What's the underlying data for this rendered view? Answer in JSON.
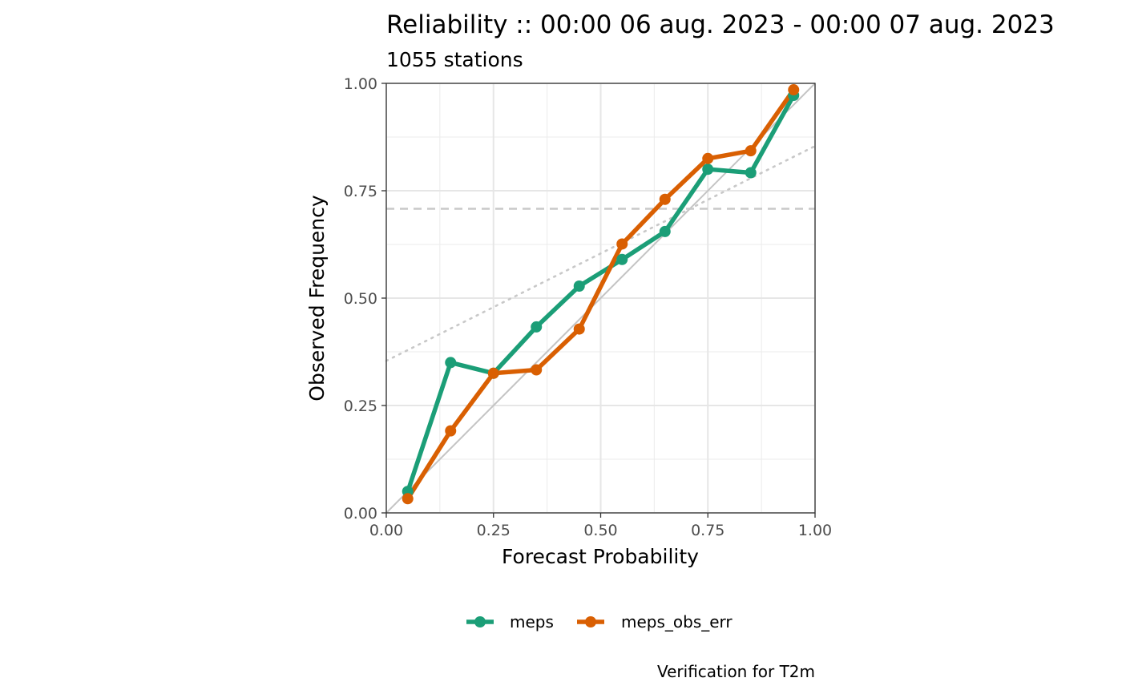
{
  "chart_data": {
    "type": "line",
    "title": "Reliability :: 00:00 06 aug. 2023 - 00:00 07 aug. 2023",
    "subtitle": "1055 stations",
    "xlabel": "Forecast Probability",
    "ylabel": "Observed Frequency",
    "caption": "Verification for T2m",
    "xlim": [
      0,
      1
    ],
    "ylim": [
      0,
      1
    ],
    "x_ticks": [
      "0.00",
      "0.25",
      "0.50",
      "0.75",
      "1.00"
    ],
    "y_ticks": [
      "0.00",
      "0.25",
      "0.50",
      "0.75",
      "1.00"
    ],
    "grid": true,
    "legend_position": "bottom",
    "reference_lines": {
      "perfect_reliability": {
        "from": [
          0,
          0
        ],
        "to": [
          1,
          1
        ]
      },
      "climatology": 0.708,
      "no_skill": {
        "intercept": 0.354,
        "slope": 0.5
      }
    },
    "series": [
      {
        "name": "meps",
        "color": "#1b9e77",
        "x": [
          0.05,
          0.15,
          0.25,
          0.35,
          0.45,
          0.55,
          0.65,
          0.75,
          0.85,
          0.95
        ],
        "y": [
          0.05,
          0.35,
          0.325,
          0.433,
          0.528,
          0.59,
          0.655,
          0.8,
          0.792,
          0.972
        ]
      },
      {
        "name": "meps_obs_err",
        "color": "#d95f02",
        "x": [
          0.05,
          0.15,
          0.25,
          0.35,
          0.45,
          0.55,
          0.65,
          0.75,
          0.85,
          0.95
        ],
        "y": [
          0.033,
          0.191,
          0.325,
          0.333,
          0.428,
          0.626,
          0.73,
          0.825,
          0.843,
          0.985
        ]
      }
    ]
  }
}
